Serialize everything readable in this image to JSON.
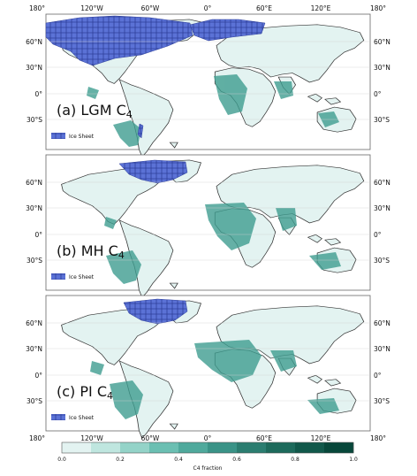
{
  "top_lon_labels": [
    "180°",
    "120°W",
    "60°W",
    "0°",
    "60°E",
    "120°E",
    "180°"
  ],
  "bottom_lon_labels": [
    "180°",
    "120°W",
    "60°W",
    "0°",
    "60°E",
    "120°E",
    "180°"
  ],
  "panels": [
    {
      "label_main": "(a) LGM C",
      "label_sub": "4",
      "legend": "Ice Sheet",
      "lat_labels": [
        "60°N",
        "30°N",
        "0°",
        "30°S"
      ]
    },
    {
      "label_main": "(b) MH C",
      "label_sub": "4",
      "legend": "Ice Sheet",
      "lat_labels": [
        "60°N",
        "30°N",
        "0°",
        "30°S"
      ]
    },
    {
      "label_main": "(c) PI C",
      "label_sub": "4",
      "legend": "Ice Sheet",
      "lat_labels": [
        "60°N",
        "30°N",
        "0°",
        "30°S"
      ]
    }
  ],
  "colorbar": {
    "title": "C4 fraction",
    "ticks": [
      "0.0",
      "0.2",
      "0.4",
      "0.6",
      "0.8",
      "1.0"
    ],
    "colors": [
      "#e3f3f1",
      "#bfe6df",
      "#94d3c8",
      "#6bbfb2",
      "#4fa99c",
      "#3a9387",
      "#2b7d70",
      "#1d6a5b",
      "#11584a",
      "#07473a"
    ]
  },
  "colors": {
    "ocean": "#ffffff",
    "land_base": "#e3f3f1",
    "ice_sheet": "#5b72d6",
    "coast": "#333333",
    "grid": "#cfcfcf"
  }
}
